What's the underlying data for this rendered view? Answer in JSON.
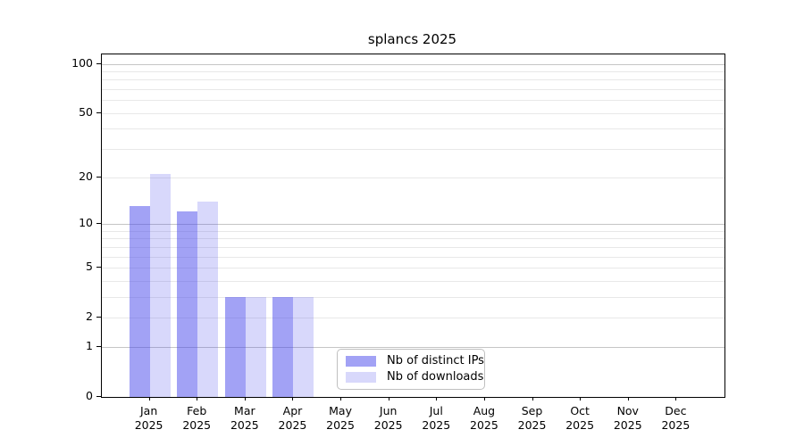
{
  "title": "splancs 2025",
  "legend": {
    "items": [
      {
        "label": "Nb of distinct IPs",
        "color": "rgba(70,70,235,0.5)"
      },
      {
        "label": "Nb of downloads",
        "color": "rgba(70,70,235,0.21)"
      }
    ]
  },
  "chart_data": {
    "type": "bar",
    "title": "splancs 2025",
    "categories": [
      "Jan 2025",
      "Feb 2025",
      "Mar 2025",
      "Apr 2025",
      "May 2025",
      "Jun 2025",
      "Jul 2025",
      "Aug 2025",
      "Sep 2025",
      "Oct 2025",
      "Nov 2025",
      "Dec 2025"
    ],
    "series": [
      {
        "name": "Nb of distinct IPs",
        "values": [
          13,
          12,
          3,
          3,
          0,
          0,
          0,
          0,
          0,
          0,
          0,
          0
        ],
        "color": "rgba(70,70,235,0.5)"
      },
      {
        "name": "Nb of downloads",
        "values": [
          21,
          14,
          3,
          3,
          0,
          0,
          0,
          0,
          0,
          0,
          0,
          0
        ],
        "color": "rgba(70,70,235,0.21)"
      }
    ],
    "xlabel": "",
    "ylabel": "",
    "yscale": "log1p",
    "ylim": [
      0,
      114
    ],
    "y_ticks": [
      0,
      1,
      2,
      5,
      10,
      20,
      50,
      100
    ],
    "y_major_gridlines": [
      1,
      10,
      100
    ],
    "y_minor_gridlines": [
      2,
      3,
      4,
      5,
      6,
      7,
      8,
      9,
      20,
      30,
      40,
      50,
      60,
      70,
      80,
      90
    ],
    "grid": true,
    "legend_position": "lower center"
  }
}
